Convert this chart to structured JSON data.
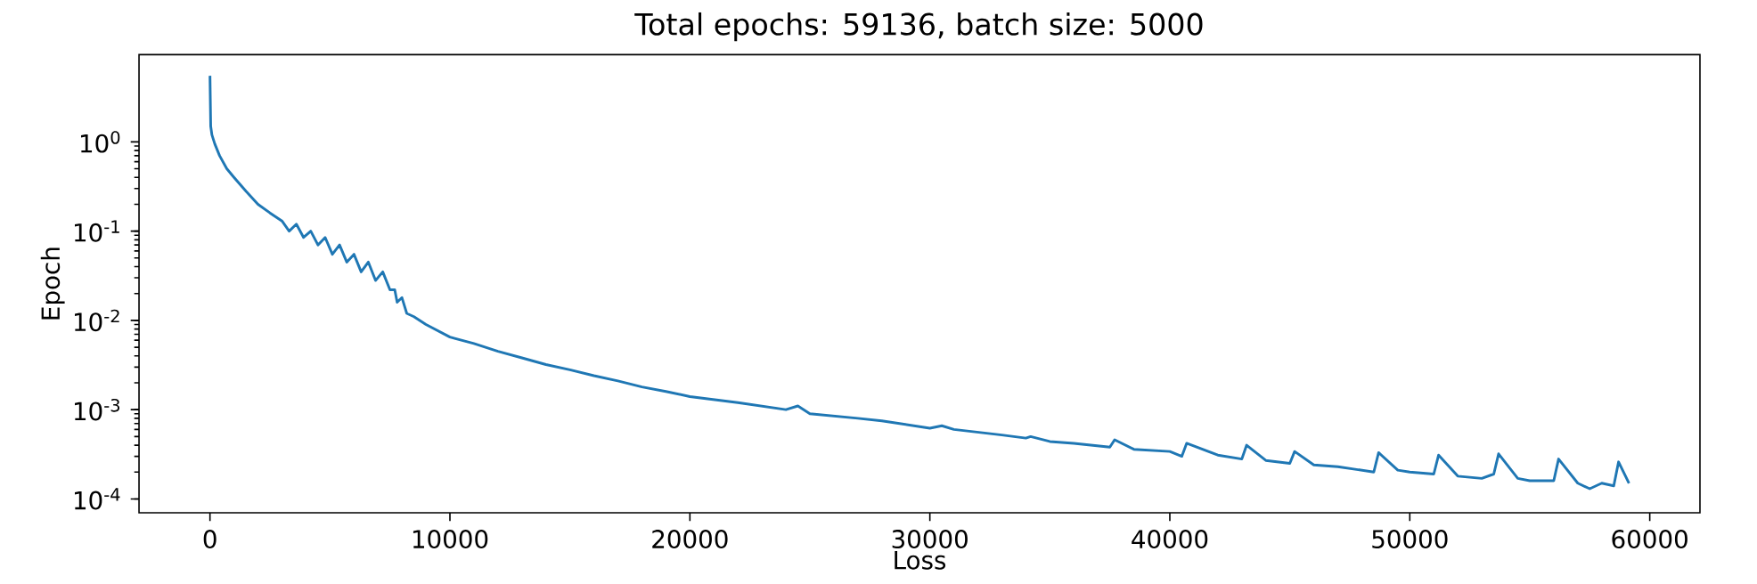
{
  "chart_data": {
    "type": "line",
    "title": "Total epochs: 59136, batch size: 5000",
    "xlabel": "Loss",
    "ylabel": "Epoch",
    "log": "y",
    "grid": false,
    "marker": "none",
    "line_style": "solid",
    "xlim": [
      -2957,
      62092
    ],
    "ylim": [
      7e-05,
      9.5
    ],
    "xticks": [
      0,
      10000,
      20000,
      30000,
      40000,
      50000,
      60000
    ],
    "yticks": [
      {
        "value": 0.0001,
        "label": "10$^{-4}$"
      },
      {
        "value": 0.001,
        "label": "10$^{-3}$"
      },
      {
        "value": 0.01,
        "label": "10$^{-2}$"
      },
      {
        "value": 0.1,
        "label": "10$^{-1}$"
      },
      {
        "value": 1,
        "label": "10$^{0}$"
      }
    ],
    "series": [
      {
        "color": "#1f77b4",
        "x": [
          0,
          30,
          80,
          200,
          400,
          700,
          1000,
          1500,
          2000,
          2500,
          3000,
          3300,
          3600,
          3900,
          4200,
          4500,
          4800,
          5100,
          5400,
          5700,
          6000,
          6300,
          6600,
          6900,
          7200,
          7500,
          7700,
          7800,
          8000,
          8200,
          8500,
          9000,
          10000,
          11000,
          12000,
          13000,
          14000,
          15000,
          16000,
          17000,
          18000,
          19000,
          20000,
          22000,
          24000,
          24500,
          25000,
          27000,
          28000,
          30000,
          30500,
          31000,
          33000,
          34000,
          34200,
          35000,
          36000,
          37500,
          37700,
          38500,
          40000,
          40500,
          40700,
          42000,
          43000,
          43200,
          44000,
          45000,
          45200,
          46000,
          47000,
          48500,
          48700,
          49500,
          50000,
          51000,
          51200,
          52000,
          53000,
          53500,
          53700,
          54500,
          55000,
          56000,
          56200,
          57000,
          57500,
          58000,
          58500,
          58700,
          59135
        ],
        "values": [
          5.5,
          1.5,
          1.2,
          0.95,
          0.7,
          0.5,
          0.4,
          0.28,
          0.2,
          0.16,
          0.13,
          0.1,
          0.12,
          0.085,
          0.1,
          0.07,
          0.085,
          0.055,
          0.07,
          0.045,
          0.055,
          0.035,
          0.045,
          0.028,
          0.035,
          0.022,
          0.022,
          0.016,
          0.018,
          0.012,
          0.011,
          0.009,
          0.0065,
          0.0055,
          0.0045,
          0.0038,
          0.0032,
          0.0028,
          0.0024,
          0.0021,
          0.0018,
          0.0016,
          0.0014,
          0.0012,
          0.001,
          0.0011,
          0.0009,
          0.0008,
          0.00075,
          0.00062,
          0.00066,
          0.0006,
          0.00052,
          0.00048,
          0.0005,
          0.00044,
          0.00042,
          0.00038,
          0.00046,
          0.00036,
          0.00034,
          0.0003,
          0.00042,
          0.00031,
          0.00028,
          0.0004,
          0.00027,
          0.00025,
          0.00034,
          0.00024,
          0.00023,
          0.0002,
          0.00033,
          0.00021,
          0.0002,
          0.00019,
          0.00031,
          0.00018,
          0.00017,
          0.00019,
          0.00032,
          0.00017,
          0.00016,
          0.00016,
          0.00028,
          0.00015,
          0.00013,
          0.00015,
          0.00014,
          0.00026,
          0.00015
        ]
      }
    ]
  }
}
